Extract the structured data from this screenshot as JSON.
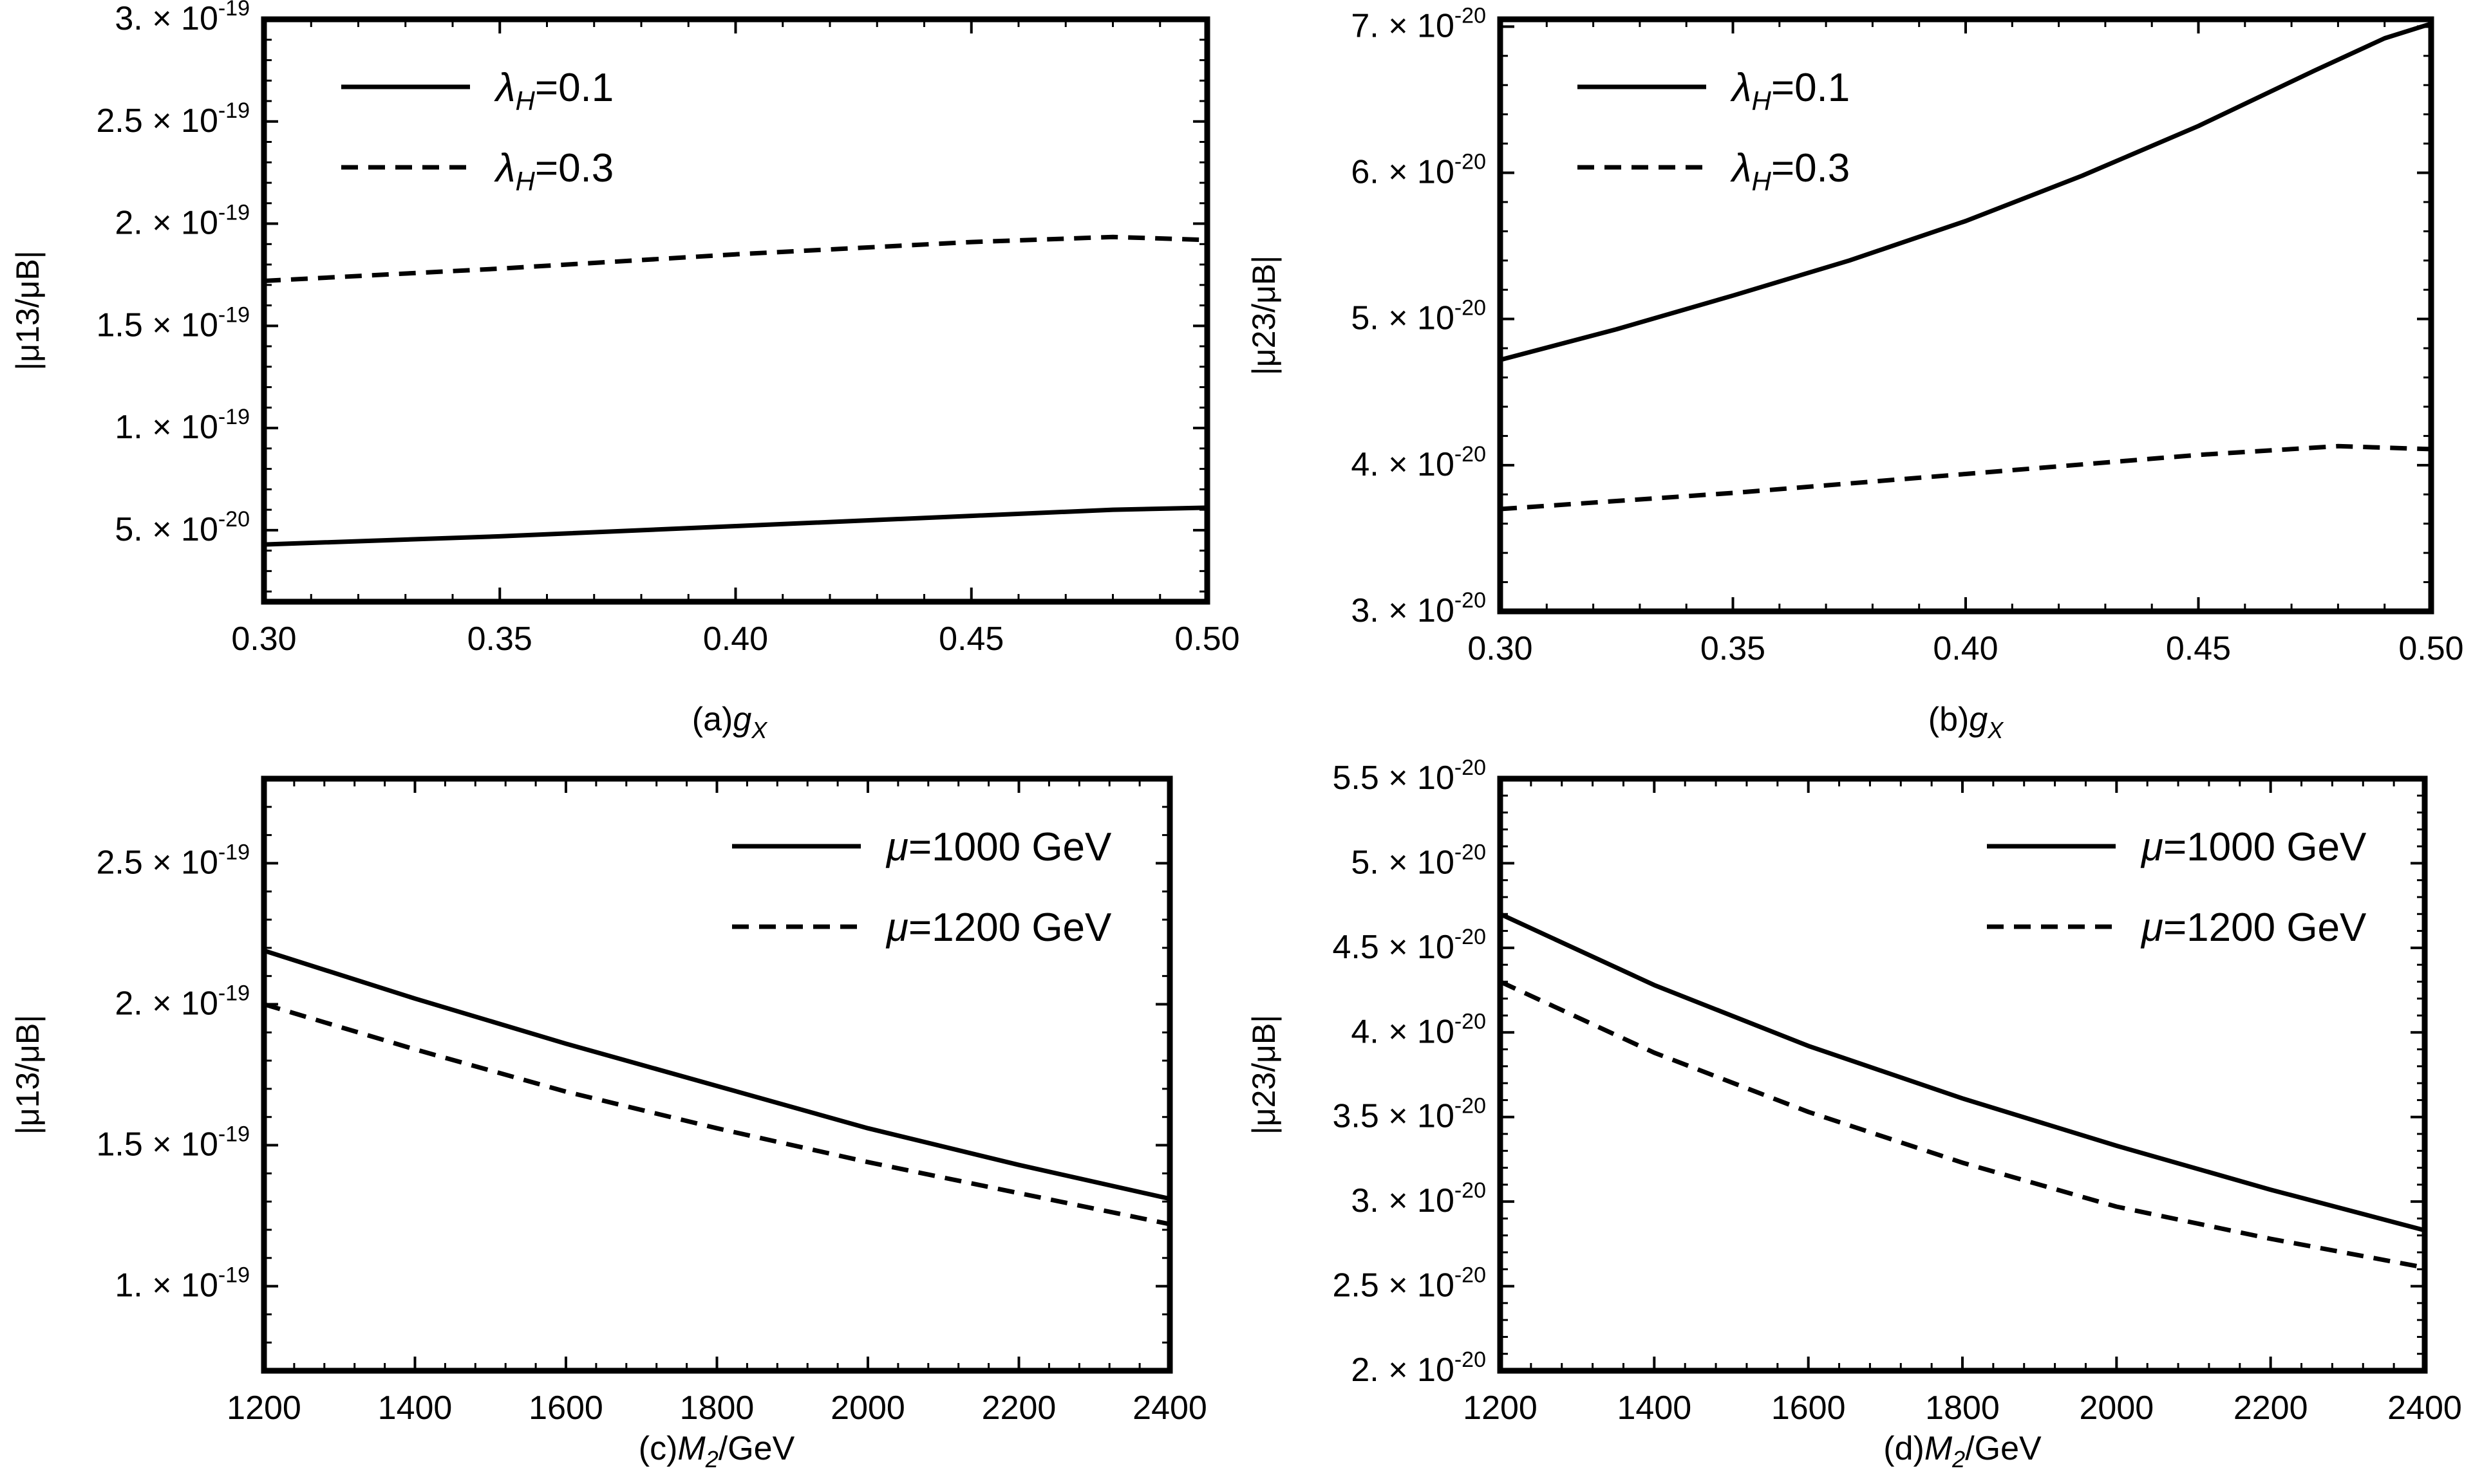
{
  "chart_data": [
    {
      "type": "line",
      "caption_prefix": "(a)",
      "caption_var": "g",
      "caption_sub": "X",
      "caption_suffix": "",
      "ylabel": "|μ13/μB|",
      "x_ticks": [
        "0.30",
        "0.35",
        "0.40",
        "0.45",
        "0.50"
      ],
      "xlim": [
        0.3,
        0.5
      ],
      "y_ticks": [
        {
          "value": 5e-20,
          "mant": "5.",
          "exp": "-20"
        },
        {
          "value": 1e-19,
          "mant": "1.",
          "exp": "-19"
        },
        {
          "value": 1.5e-19,
          "mant": "1.5",
          "exp": "-19"
        },
        {
          "value": 2e-19,
          "mant": "2.",
          "exp": "-19"
        },
        {
          "value": 2.5e-19,
          "mant": "2.5",
          "exp": "-19"
        },
        {
          "value": 3e-19,
          "mant": "3.",
          "exp": "-19"
        }
      ],
      "ylim": [
        1.5e-20,
        3e-19
      ],
      "legend_position": "top-left",
      "legend_symbol": "λ",
      "legend_sub": "H",
      "series": [
        {
          "name": "λH=0.1",
          "legend_value": "=0.1",
          "style": "solid",
          "x": [
            0.3,
            0.35,
            0.4,
            0.45,
            0.48,
            0.5
          ],
          "values": [
            4.3e-20,
            4.7e-20,
            5.2e-20,
            5.7e-20,
            6e-20,
            6.1e-20
          ]
        },
        {
          "name": "λH=0.3",
          "legend_value": "=0.3",
          "style": "dashed",
          "x": [
            0.3,
            0.35,
            0.4,
            0.45,
            0.48,
            0.5
          ],
          "values": [
            1.72e-19,
            1.78e-19,
            1.85e-19,
            1.91e-19,
            1.935e-19,
            1.92e-19
          ]
        }
      ]
    },
    {
      "type": "line",
      "caption_prefix": "(b)",
      "caption_var": "g",
      "caption_sub": "X",
      "caption_suffix": "",
      "ylabel": "|μ23/μB|",
      "x_ticks": [
        "0.30",
        "0.35",
        "0.40",
        "0.45",
        "0.50"
      ],
      "xlim": [
        0.3,
        0.5
      ],
      "y_ticks": [
        {
          "value": 3e-20,
          "mant": "3.",
          "exp": "-20"
        },
        {
          "value": 4e-20,
          "mant": "4.",
          "exp": "-20"
        },
        {
          "value": 5e-20,
          "mant": "5.",
          "exp": "-20"
        },
        {
          "value": 6e-20,
          "mant": "6.",
          "exp": "-20"
        },
        {
          "value": 7e-20,
          "mant": "7.",
          "exp": "-20"
        }
      ],
      "ylim": [
        3e-20,
        7.05e-20
      ],
      "legend_position": "top-left",
      "legend_symbol": "λ",
      "legend_sub": "H",
      "series": [
        {
          "name": "λH=0.1",
          "legend_value": "=0.1",
          "style": "solid",
          "x": [
            0.3,
            0.325,
            0.35,
            0.375,
            0.4,
            0.425,
            0.45,
            0.475,
            0.49,
            0.5
          ],
          "values": [
            4.72e-20,
            4.93e-20,
            5.16e-20,
            5.4e-20,
            5.67e-20,
            5.98e-20,
            6.32e-20,
            6.7e-20,
            6.92e-20,
            7.02e-20
          ]
        },
        {
          "name": "λH=0.3",
          "legend_value": "=0.3",
          "style": "dashed",
          "x": [
            0.3,
            0.35,
            0.4,
            0.45,
            0.48,
            0.5
          ],
          "values": [
            3.7e-20,
            3.81e-20,
            3.94e-20,
            4.07e-20,
            4.13e-20,
            4.11e-20
          ]
        }
      ]
    },
    {
      "type": "line",
      "caption_prefix": "(c)",
      "caption_var": "M",
      "caption_sub": "2",
      "caption_suffix": "/GeV",
      "ylabel": "|μ13/μB|",
      "x_ticks": [
        "1200",
        "1400",
        "1600",
        "1800",
        "2000",
        "2200",
        "2400"
      ],
      "xlim": [
        1200,
        2400
      ],
      "y_ticks": [
        {
          "value": 1e-19,
          "mant": "1.",
          "exp": "-19"
        },
        {
          "value": 1.5e-19,
          "mant": "1.5",
          "exp": "-19"
        },
        {
          "value": 2e-19,
          "mant": "2.",
          "exp": "-19"
        },
        {
          "value": 2.5e-19,
          "mant": "2.5",
          "exp": "-19"
        }
      ],
      "ylim": [
        7e-20,
        2.8e-19
      ],
      "legend_position": "top-right",
      "legend_symbol": "μ",
      "legend_sub": "",
      "series": [
        {
          "name": "μ=1000 GeV",
          "legend_value": "=1000 GeV",
          "style": "solid",
          "x": [
            1200,
            1400,
            1600,
            1800,
            2000,
            2200,
            2400
          ],
          "values": [
            2.19e-19,
            2.02e-19,
            1.86e-19,
            1.71e-19,
            1.56e-19,
            1.43e-19,
            1.31e-19
          ]
        },
        {
          "name": "μ=1200 GeV",
          "legend_value": "=1200 GeV",
          "style": "dashed",
          "x": [
            1200,
            1400,
            1600,
            1800,
            2000,
            2200,
            2400
          ],
          "values": [
            2e-19,
            1.84e-19,
            1.69e-19,
            1.56e-19,
            1.44e-19,
            1.33e-19,
            1.22e-19
          ]
        }
      ]
    },
    {
      "type": "line",
      "caption_prefix": "(d)",
      "caption_var": "M",
      "caption_sub": "2",
      "caption_suffix": "/GeV",
      "ylabel": "|μ23/μB|",
      "x_ticks": [
        "1200",
        "1400",
        "1600",
        "1800",
        "2000",
        "2200",
        "2400"
      ],
      "xlim": [
        1200,
        2400
      ],
      "y_ticks": [
        {
          "value": 2e-20,
          "mant": "2.",
          "exp": "-20"
        },
        {
          "value": 2.5e-20,
          "mant": "2.5",
          "exp": "-20"
        },
        {
          "value": 3e-20,
          "mant": "3.",
          "exp": "-20"
        },
        {
          "value": 3.5e-20,
          "mant": "3.5",
          "exp": "-20"
        },
        {
          "value": 4e-20,
          "mant": "4.",
          "exp": "-20"
        },
        {
          "value": 4.5e-20,
          "mant": "4.5",
          "exp": "-20"
        },
        {
          "value": 5e-20,
          "mant": "5.",
          "exp": "-20"
        },
        {
          "value": 5.5e-20,
          "mant": "5.5",
          "exp": "-20"
        }
      ],
      "ylim": [
        2e-20,
        5.5e-20
      ],
      "legend_position": "top-right",
      "legend_symbol": "μ",
      "legend_sub": "",
      "series": [
        {
          "name": "μ=1000 GeV",
          "legend_value": "=1000 GeV",
          "style": "solid",
          "x": [
            1200,
            1400,
            1600,
            1800,
            2000,
            2200,
            2400
          ],
          "values": [
            4.7e-20,
            4.28e-20,
            3.92e-20,
            3.61e-20,
            3.33e-20,
            3.07e-20,
            2.83e-20
          ]
        },
        {
          "name": "μ=1200 GeV",
          "legend_value": "=1200 GeV",
          "style": "dashed",
          "x": [
            1200,
            1400,
            1600,
            1800,
            2000,
            2200,
            2400
          ],
          "values": [
            4.3e-20,
            3.88e-20,
            3.53e-20,
            3.23e-20,
            2.97e-20,
            2.78e-20,
            2.61e-20
          ]
        }
      ]
    }
  ]
}
